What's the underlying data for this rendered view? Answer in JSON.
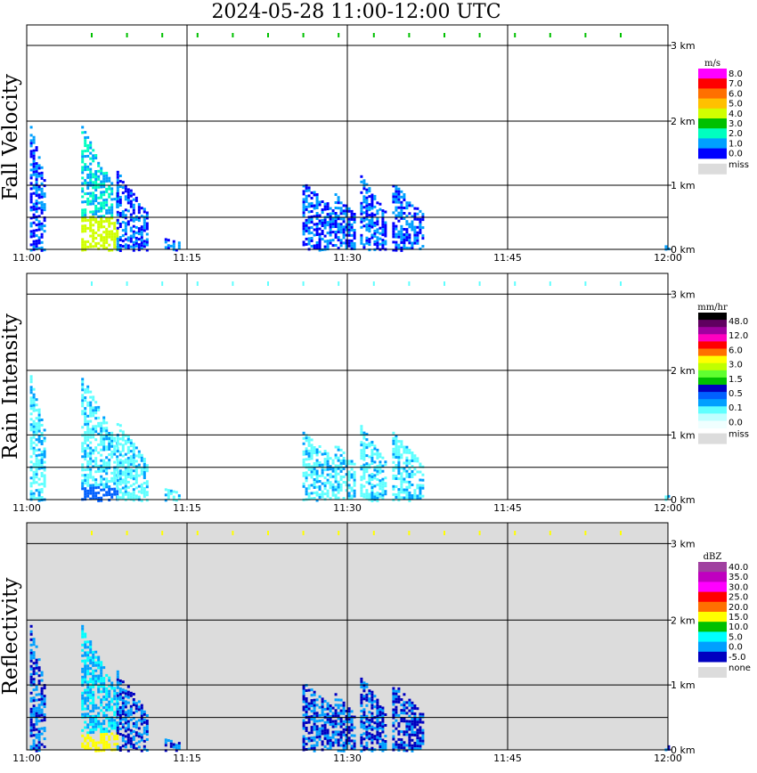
{
  "title": "2024-05-28  11:00-12:00 UTC",
  "chart_data": [
    {
      "type": "heatmap",
      "ylabel": "Fall Velocity",
      "x_ticks": [
        "11:00",
        "11:15",
        "11:30",
        "11:45",
        "12:00"
      ],
      "y_ticks": [
        "0 km",
        "1 km",
        "2 km",
        "3 km"
      ],
      "ylim_km": [
        0,
        3.5
      ],
      "grid": true,
      "background": "#ffffff",
      "colorbar": {
        "unit": "m/s",
        "labels": [
          "8.0",
          "7.0",
          "6.0",
          "5.0",
          "4.0",
          "3.0",
          "2.0",
          "1.0",
          "0.0"
        ],
        "miss_label": "miss",
        "colors": [
          "#ff00ff",
          "#ff0000",
          "#ff7000",
          "#ffc000",
          "#d0ff00",
          "#00c000",
          "#00ffc0",
          "#00a0ff",
          "#0000ff"
        ]
      }
    },
    {
      "type": "heatmap",
      "ylabel": "Rain Intensity",
      "x_ticks": [
        "11:00",
        "11:15",
        "11:30",
        "11:45",
        "12:00"
      ],
      "y_ticks": [
        "0 km",
        "1 km",
        "2 km",
        "3 km"
      ],
      "ylim_km": [
        0,
        3.5
      ],
      "grid": true,
      "background": "#ffffff",
      "colorbar": {
        "unit": "mm/hr",
        "labels": [
          "48.0",
          "12.0",
          "6.0",
          "3.0",
          "1.5",
          "0.5",
          "0.1",
          "0.0"
        ],
        "miss_label": "miss",
        "colors": [
          "#000000",
          "#600060",
          "#a000a0",
          "#ff00c0",
          "#ff0000",
          "#ff7000",
          "#ffff00",
          "#c0ff00",
          "#60ff30",
          "#00c000",
          "#0000c0",
          "#0060ff",
          "#00a0ff",
          "#60ffff",
          "#c0ffff",
          "#f0ffff"
        ]
      }
    },
    {
      "type": "heatmap",
      "ylabel": "Reflectivity",
      "x_ticks": [
        "11:00",
        "11:15",
        "11:30",
        "11:45",
        "12:00"
      ],
      "y_ticks": [
        "0 km",
        "1 km",
        "2 km",
        "3 km"
      ],
      "ylim_km": [
        0,
        3.5
      ],
      "grid": true,
      "background": "#dcdcdc",
      "colorbar": {
        "unit": "dBZ",
        "labels": [
          "40.0",
          "35.0",
          "30.0",
          "25.0",
          "20.0",
          "15.0",
          "10.0",
          "5.0",
          "0.0",
          "-5.0"
        ],
        "miss_label": "none",
        "colors": [
          "#a040a0",
          "#c000c0",
          "#ff00ff",
          "#ff0000",
          "#ff7000",
          "#ffff00",
          "#00c000",
          "#00ffff",
          "#00a0ff",
          "#0000c0"
        ]
      }
    }
  ]
}
